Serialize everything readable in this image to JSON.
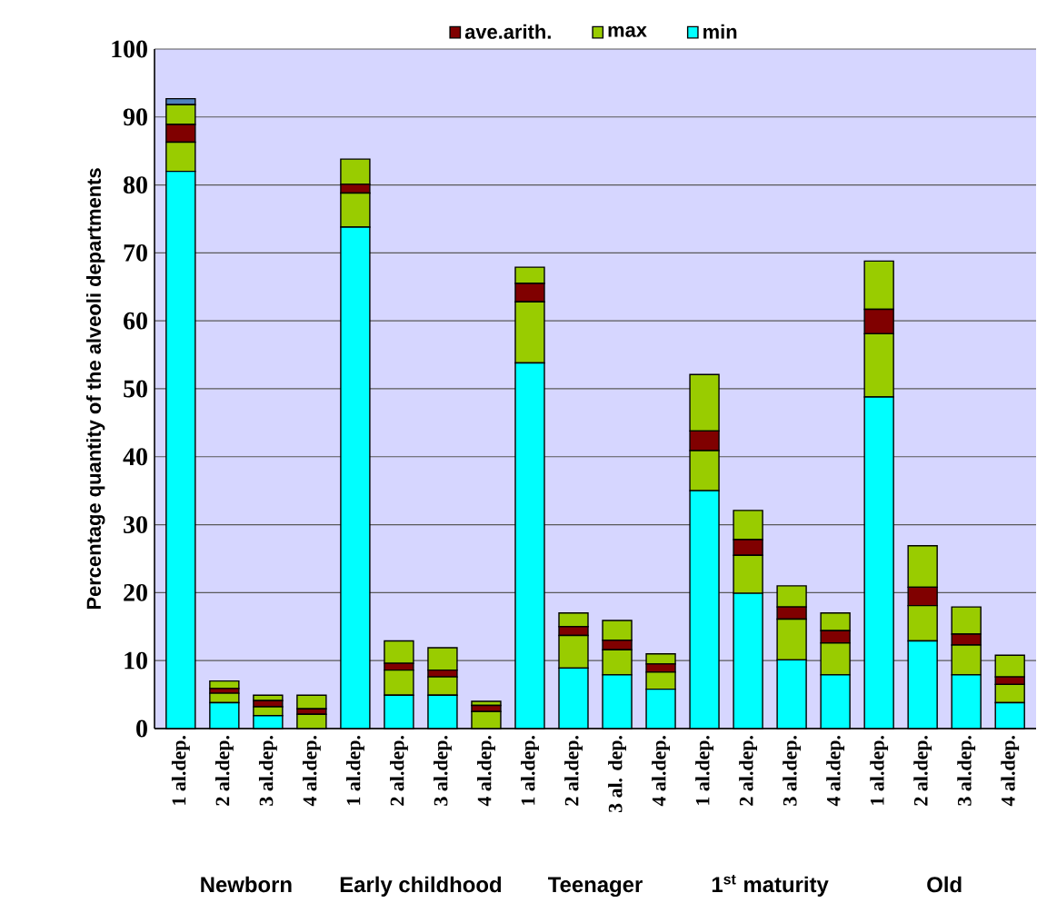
{
  "chart_data": {
    "type": "bar",
    "stacked": true,
    "ylabel": "Percentage quantity of the alveoli departments",
    "categories": [
      "1 al.dep.",
      "2 al.dep.",
      "3 al.dep.",
      "4 al.dep.",
      "1 al.dep.",
      "2 al.dep.",
      "3 al.dep.",
      "4 al.dep.",
      "1 al.dep.",
      "2 al.dep.",
      "3 al. dep.",
      "4 al.dep.",
      "1 al.dep.",
      "2 al.dep.",
      "3 al.dep.",
      "4 al.dep.",
      "1 al.dep.",
      "2 al.dep.",
      "3 al.dep.",
      "4 al.dep."
    ],
    "series": [
      {
        "name": "min",
        "color": "#00ffff",
        "values": [
          82,
          3.8,
          1.9,
          0,
          73.8,
          4.9,
          4.9,
          0,
          53.8,
          8.9,
          7.9,
          5.8,
          35,
          19.9,
          10.1,
          7.9,
          48.8,
          12.9,
          7.9,
          3.8
        ]
      },
      {
        "name": "max",
        "color": "#99cc00",
        "values": [
          4.3,
          1.4,
          1.3,
          2.1,
          5,
          3.7,
          2.7,
          2.5,
          9,
          4.8,
          3.7,
          2.5,
          5.9,
          5.6,
          6,
          4.7,
          9.3,
          5.2,
          4.4,
          2.7
        ]
      },
      {
        "name": "ave.arith.",
        "color": "#800000",
        "values": [
          2.6,
          0.7,
          0.9,
          0.8,
          1.3,
          1,
          1,
          0.9,
          2.7,
          1.3,
          1.4,
          1.2,
          2.9,
          2.3,
          1.8,
          1.8,
          3.6,
          2.7,
          1.6,
          1.1
        ]
      },
      {
        "color": "#99cc00",
        "values": [
          2.9,
          1.1,
          0.8,
          2,
          3.7,
          3.3,
          3.3,
          0.6,
          2.4,
          2,
          2.9,
          1.5,
          8.3,
          4.3,
          3.1,
          2.6,
          7.1,
          6.1,
          4,
          3.2
        ]
      },
      {
        "color": "#4f81bd",
        "values": [
          0.9,
          null,
          null,
          null,
          null,
          null,
          null,
          null,
          null,
          null,
          null,
          null,
          null,
          null,
          null,
          null,
          null,
          null,
          null,
          null
        ]
      }
    ],
    "ylim": [
      0,
      100
    ],
    "yticks": [
      0,
      10,
      20,
      30,
      40,
      50,
      60,
      70,
      80,
      90,
      100
    ],
    "grid": "y",
    "legend": "top",
    "annotations": [
      "Newborn",
      "Early childhood",
      "Teenager",
      "1$^{st}$ maturity",
      "Old"
    ]
  }
}
